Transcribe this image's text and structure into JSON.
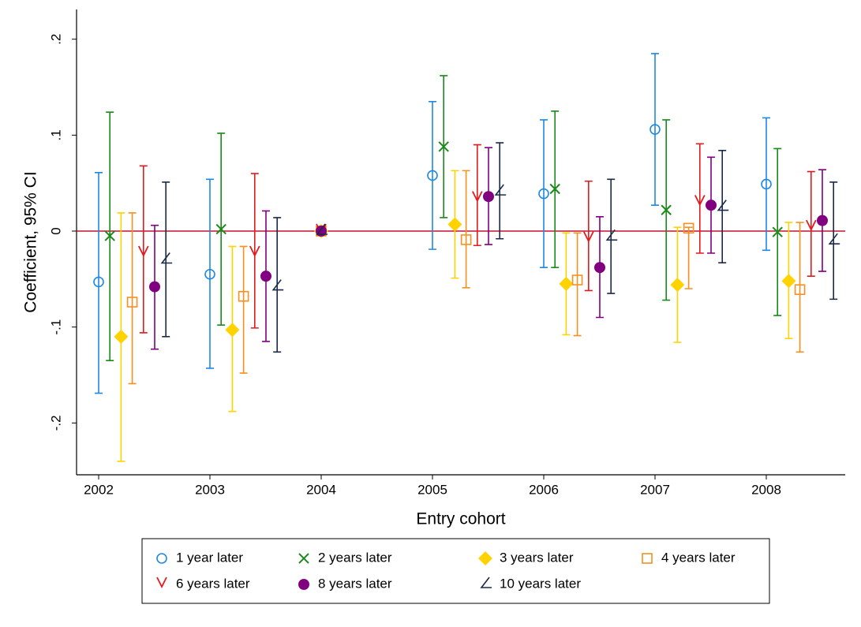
{
  "chart_data": {
    "type": "errorbar",
    "xlabel": "Entry cohort",
    "ylabel": "Coefficient, 95% CI",
    "categories": [
      "2002",
      "2003",
      "2004",
      "2005",
      "2006",
      "2007",
      "2008"
    ],
    "ylim": [
      -0.254,
      0.231
    ],
    "yticks": [
      {
        "value": -0.2,
        "label": "-.2"
      },
      {
        "value": -0.1,
        "label": "-.1"
      },
      {
        "value": 0,
        "label": "0"
      },
      {
        "value": 0.1,
        "label": ".1"
      },
      {
        "value": 0.2,
        "label": ".2"
      }
    ],
    "hline": 0,
    "hline_color": "#c8102e",
    "series": [
      {
        "name": "1 year later",
        "color": "#1e88e5",
        "marker": "circle-hollow",
        "values": [
          -0.053,
          -0.045,
          0,
          0.058,
          0.039,
          0.106,
          0.049
        ],
        "lower": [
          -0.169,
          -0.143,
          0,
          -0.019,
          -0.038,
          0.027,
          -0.02
        ],
        "upper": [
          0.061,
          0.054,
          0,
          0.135,
          0.116,
          0.185,
          0.118
        ]
      },
      {
        "name": "2 years later",
        "color": "#1a8a1a",
        "marker": "x",
        "values": [
          -0.005,
          0.002,
          0,
          0.088,
          0.044,
          0.022,
          -0.001
        ],
        "lower": [
          -0.135,
          -0.098,
          0,
          0.014,
          -0.038,
          -0.072,
          -0.088
        ],
        "upper": [
          0.124,
          0.102,
          0,
          0.162,
          0.125,
          0.116,
          0.086
        ]
      },
      {
        "name": "3 years later",
        "color": "#ffd200",
        "marker": "diamond",
        "values": [
          -0.11,
          -0.103,
          0,
          0.007,
          -0.055,
          -0.056,
          -0.052
        ],
        "lower": [
          -0.24,
          -0.188,
          0,
          -0.049,
          -0.108,
          -0.116,
          -0.112
        ],
        "upper": [
          0.019,
          -0.016,
          0,
          0.063,
          -0.002,
          0.004,
          0.009
        ]
      },
      {
        "name": "4 years later",
        "color": "#f7901e",
        "marker": "square-hollow",
        "values": [
          -0.074,
          -0.068,
          0,
          -0.009,
          -0.051,
          0.003,
          -0.061
        ],
        "lower": [
          -0.159,
          -0.148,
          0,
          -0.059,
          -0.109,
          -0.06,
          -0.126
        ],
        "upper": [
          0.019,
          -0.016,
          0,
          0.063,
          -0.002,
          0.004,
          0.009
        ]
      },
      {
        "name": "6 years later",
        "color": "#e41a1c",
        "marker": "v",
        "values": [
          -0.023,
          -0.023,
          0,
          0.034,
          -0.008,
          0.03,
          0.004
        ],
        "lower": [
          -0.106,
          -0.101,
          0,
          -0.015,
          -0.062,
          -0.023,
          -0.047
        ],
        "upper": [
          0.068,
          0.06,
          0,
          0.09,
          0.052,
          0.091,
          0.062
        ]
      },
      {
        "name": "8 years later",
        "color": "#800080",
        "marker": "circle",
        "values": [
          -0.058,
          -0.047,
          0,
          0.036,
          -0.038,
          0.027,
          0.011
        ],
        "lower": [
          -0.123,
          -0.115,
          0,
          -0.014,
          -0.09,
          -0.023,
          -0.042
        ],
        "upper": [
          0.006,
          0.021,
          0,
          0.087,
          0.015,
          0.077,
          0.064
        ]
      },
      {
        "name": "10 years later",
        "color": "#1c2a4a",
        "marker": "angle",
        "values": [
          -0.03,
          -0.058,
          0,
          0.041,
          -0.006,
          0.025,
          -0.01
        ],
        "lower": [
          -0.11,
          -0.126,
          0,
          -0.008,
          -0.065,
          -0.033,
          -0.071
        ],
        "upper": [
          0.051,
          0.014,
          0,
          0.092,
          0.054,
          0.084,
          0.051
        ]
      }
    ]
  }
}
